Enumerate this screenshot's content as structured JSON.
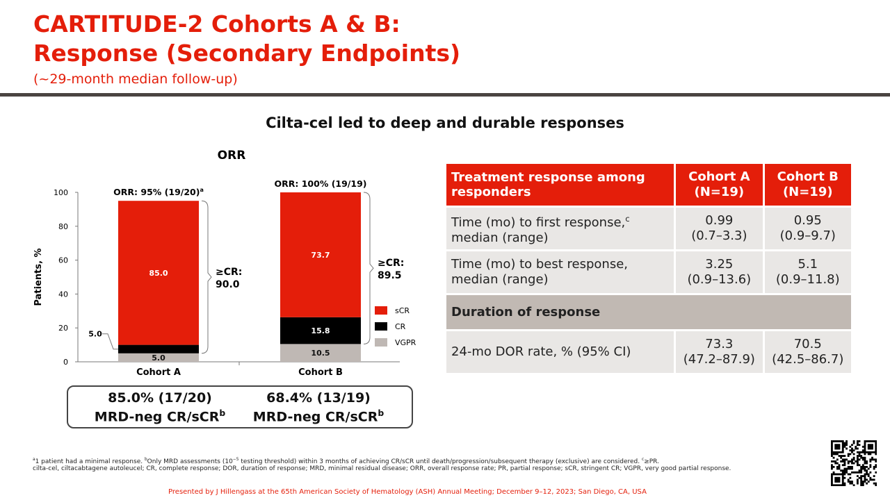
{
  "header": {
    "title_lines": [
      "CARTITUDE-2 Cohorts A & B:",
      "Response (Secondary Endpoints)"
    ],
    "subtitle": "(~29-month median follow-up)"
  },
  "subheading": "Cilta-cel led to deep and durable responses",
  "chart_data": {
    "type": "stacked_bar",
    "title": "ORR",
    "ylabel": "Patients, %",
    "categories": [
      "Cohort A",
      "Cohort B"
    ],
    "series": [
      {
        "name": "VGPR",
        "color": "#bfb8b4",
        "values": [
          5.0,
          10.5
        ],
        "value_labels": [
          "5.0",
          "10.5"
        ]
      },
      {
        "name": "CR",
        "color": "#000000",
        "values": [
          5.0,
          15.8
        ],
        "value_labels": [
          "5.0",
          "15.8"
        ]
      },
      {
        "name": "sCR",
        "color": "#e41e0a",
        "values": [
          85.0,
          73.7
        ],
        "value_labels": [
          "85.0",
          "73.7"
        ]
      }
    ],
    "ylim": [
      0,
      100
    ],
    "yticks": [
      0,
      20,
      40,
      60,
      80,
      100
    ],
    "bar_annotations": [
      {
        "text": "ORR: 95% (19/20)",
        "sup": "a"
      },
      {
        "text": "ORR: 100% (19/19)"
      }
    ],
    "bracket_labels": [
      [
        "≥CR:",
        "90.0"
      ],
      [
        "≥CR:",
        "89.5"
      ]
    ]
  },
  "mrd_box": [
    {
      "value": "85.0% (17/20)",
      "label": "MRD-neg CR/sCR",
      "sup": "b"
    },
    {
      "value": "68.4% (13/19)",
      "label": "MRD-neg CR/sCR",
      "sup": "b"
    }
  ],
  "table": {
    "header": [
      "Treatment response among responders",
      [
        "Cohort A",
        "(N=19)"
      ],
      [
        "Cohort B",
        "(N=19)"
      ]
    ],
    "rows": [
      {
        "label": [
          "Time (mo) to first response,",
          "median (range)"
        ],
        "sup": "c",
        "a": [
          "0.99",
          "(0.7–3.3)"
        ],
        "b": [
          "0.95",
          "(0.9–9.7)"
        ]
      },
      {
        "label": [
          "Time  (mo) to best response,",
          "median (range)"
        ],
        "a": [
          "3.25",
          "(0.9–13.6)"
        ],
        "b": [
          "5.1",
          "(0.9–11.8)"
        ]
      }
    ],
    "section": "Duration of response",
    "dor_row": {
      "label": "24-mo DOR rate, % (95% CI)",
      "a": [
        "73.3",
        "(47.2–87.9)"
      ],
      "b": [
        "70.5",
        "(42.5–86.7)"
      ]
    }
  },
  "footnotes": {
    "line1": [
      {
        "sup": "a"
      },
      {
        "text": "1 patient had a minimal response. "
      },
      {
        "sup": "b"
      },
      {
        "text": "Only MRD assessments (10"
      },
      {
        "sup": "−5"
      },
      {
        "text": " testing threshold) within 3 months of achieving CR/sCR until death/progression/subsequent therapy (exclusive) are considered. "
      },
      {
        "sup": "c"
      },
      {
        "text": "≥PR."
      }
    ],
    "line2": "cilta-cel, ciltacabtagene autoleucel; CR, complete response; DOR, duration of response; MRD, minimal residual disease; ORR, overall response rate; PR, partial response; sCR, stringent CR; VGPR, very good partial response."
  },
  "footer": "Presented by J Hillengass at the 65th American Society of Hematology (ASH) Annual Meeting; December 9–12, 2023; San Diego, CA, USA"
}
